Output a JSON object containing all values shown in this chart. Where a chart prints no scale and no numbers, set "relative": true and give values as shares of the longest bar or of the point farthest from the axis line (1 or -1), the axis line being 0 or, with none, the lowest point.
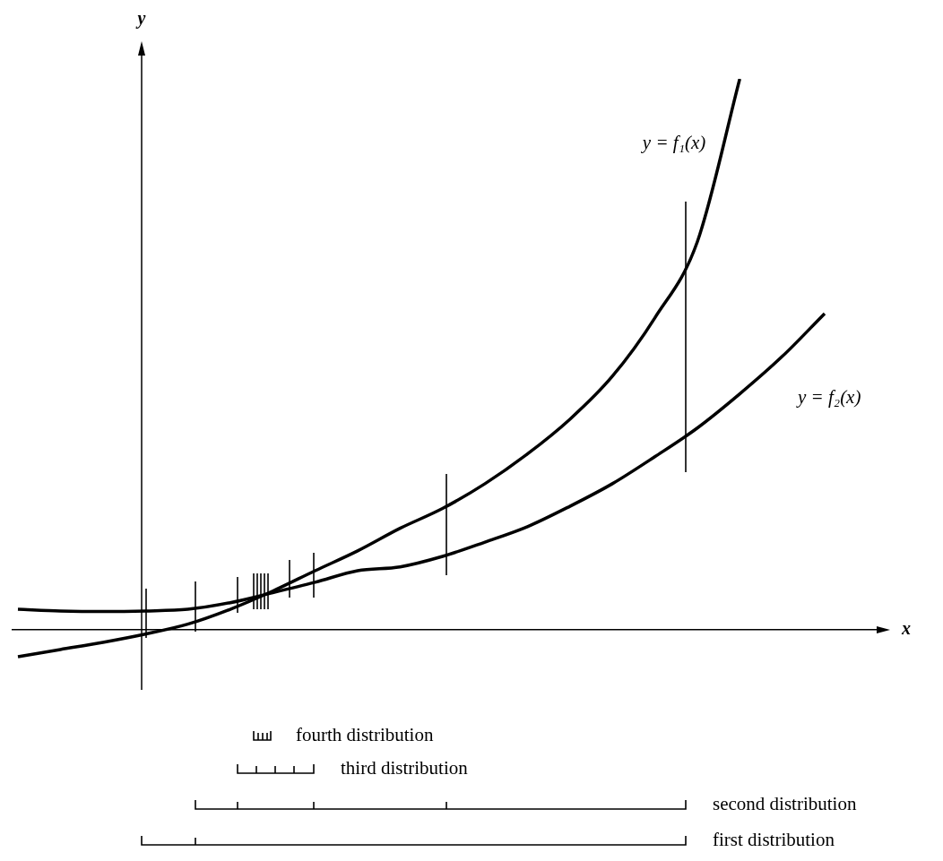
{
  "chart_data": {
    "type": "line",
    "relative": true,
    "xlabel": "x",
    "ylabel": "y",
    "legend": false,
    "marker": "none",
    "line_style": "solid",
    "categories": [
      null,
      null,
      null,
      null,
      null,
      null,
      null,
      null,
      null,
      null,
      null,
      null,
      null,
      null,
      null,
      null,
      null,
      null,
      null,
      null
    ],
    "series": [
      {
        "name": "y = f₁(x)",
        "color": "#000000",
        "values": [
          -0.049,
          -0.036,
          -0.023,
          -0.008,
          0.01,
          0.037,
          0.07,
          0.107,
          0.143,
          0.184,
          0.22,
          0.265,
          0.319,
          0.382,
          0.46,
          0.566,
          0.704,
          1,
          null,
          null
        ]
      },
      {
        "name": "y = f₂(x)",
        "color": "#000000",
        "values": [
          0.037,
          0.034,
          0.033,
          0.034,
          0.037,
          0.049,
          0.067,
          0.086,
          0.107,
          0.114,
          0.133,
          0.159,
          0.187,
          0.224,
          0.265,
          0.314,
          0.366,
          0.428,
          0.496,
          0.574
        ]
      }
    ],
    "annotations": [
      "fourth distribution",
      "third distribution",
      "second distribution",
      "first distribution"
    ]
  }
}
